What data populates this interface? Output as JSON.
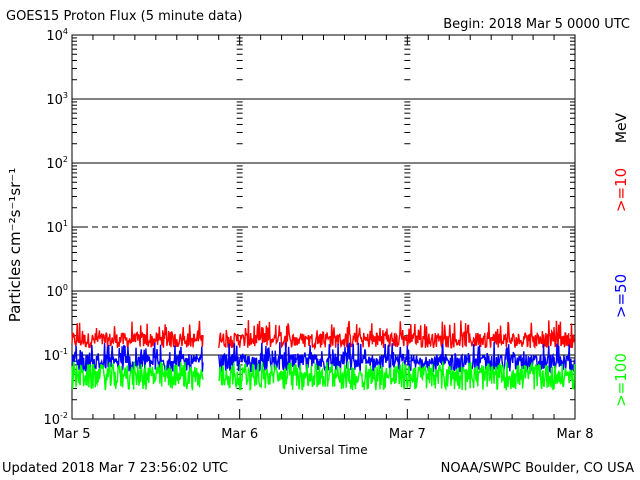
{
  "header": {
    "title": "GOES15 Proton Flux (5 minute data)",
    "begin": "Begin: 2018 Mar 5 0000 UTC"
  },
  "footer": {
    "updated": "Updated 2018 Mar  7 23:56:02 UTC",
    "credit": "NOAA/SWPC Boulder, CO USA"
  },
  "chart_data": {
    "type": "line",
    "title": "GOES15 Proton Flux (5 minute data)",
    "xlabel": "Universal Time",
    "ylabel": "Particles cm⁻²s⁻¹sr⁻¹",
    "yscale": "log",
    "ylim": [
      0.01,
      10000
    ],
    "y_ticks": [
      {
        "value": 0.01,
        "base": "10",
        "exp": "-2"
      },
      {
        "value": 0.1,
        "base": "10",
        "exp": "-1"
      },
      {
        "value": 1,
        "base": "10",
        "exp": "0"
      },
      {
        "value": 10,
        "base": "10",
        "exp": "1"
      },
      {
        "value": 100,
        "base": "10",
        "exp": "2"
      },
      {
        "value": 1000,
        "base": "10",
        "exp": "3"
      },
      {
        "value": 10000,
        "base": "10",
        "exp": "4"
      }
    ],
    "x_ticks": [
      "Mar 5",
      "Mar 6",
      "Mar 7",
      "Mar 8"
    ],
    "xlim": [
      "2018-03-05",
      "2018-03-08"
    ],
    "reference_lines": [
      {
        "value": 1000,
        "style": "solid"
      },
      {
        "value": 100,
        "style": "solid"
      },
      {
        "value": 10,
        "style": "dashed"
      },
      {
        "value": 1,
        "style": "solid"
      },
      {
        "value": 0.1,
        "style": "solid"
      }
    ],
    "data_gap": [
      "2018-03-05T18:50",
      "2018-03-05T21:00"
    ],
    "unit_label": "MeV",
    "grid": false,
    "series": [
      {
        "name": ">=10",
        "color": "#ff0000",
        "typical": 0.17,
        "range": [
          0.12,
          0.35
        ]
      },
      {
        "name": ">=50",
        "color": "#0000ff",
        "typical": 0.075,
        "range": [
          0.05,
          0.16
        ]
      },
      {
        "name": ">=100",
        "color": "#00ff00",
        "typical": 0.045,
        "range": [
          0.025,
          0.08
        ]
      }
    ]
  }
}
